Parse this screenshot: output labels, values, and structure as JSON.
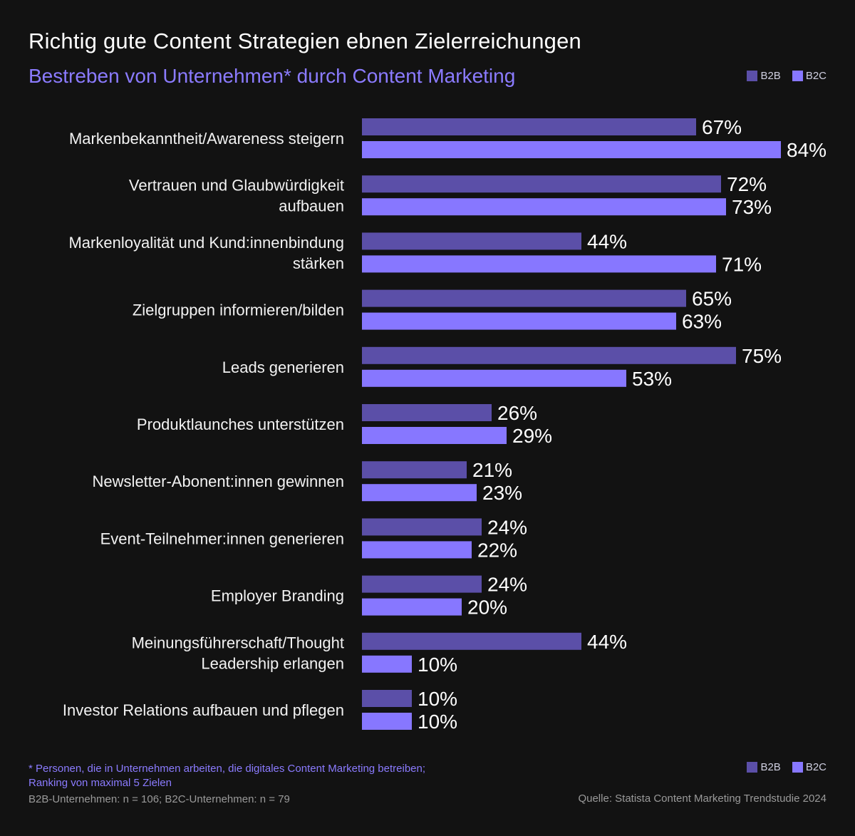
{
  "header": {
    "title": "Richtig gute Content Strategien ebnen Zielerreichungen",
    "subtitle": "Bestreben von Unternehmen* durch Content Marketing"
  },
  "legend": {
    "b2b_label": "B2B",
    "b2c_label": "B2C"
  },
  "footer": {
    "note_line1": "* Personen, die in Unternehmen arbeiten, die digitales Content Marketing betreiben;",
    "note_line2": "Ranking von maximal 5 Zielen",
    "sample": "B2B-Unternehmen: n = 106; B2C-Unternehmen: n = 79",
    "source": "Quelle: Statista Content Marketing Trendstudie 2024"
  },
  "colors": {
    "background": "#121212",
    "b2b": "#5b4fa8",
    "b2c": "#8777ff",
    "accent": "#8b7bff"
  },
  "chart_data": {
    "type": "bar",
    "orientation": "horizontal",
    "categories": [
      [
        "Markenbekanntheit/Awareness steigern"
      ],
      [
        "Vertrauen und Glaubwürdigkeit",
        "aufbauen"
      ],
      [
        "Markenloyalität und Kund:innenbindung",
        "stärken"
      ],
      [
        "Zielgruppen informieren/bilden"
      ],
      [
        "Leads generieren"
      ],
      [
        "Produktlaunches unterstützen"
      ],
      [
        "Newsletter-Abonent:innen gewinnen"
      ],
      [
        "Event-Teilnehmer:innen generieren"
      ],
      [
        "Employer Branding"
      ],
      [
        "Meinungsführerschaft/Thought",
        "Leadership erlangen"
      ],
      [
        "Investor Relations aufbauen und pflegen"
      ]
    ],
    "series": [
      {
        "name": "B2B",
        "values": [
          67,
          72,
          44,
          65,
          75,
          26,
          21,
          24,
          24,
          44,
          10
        ]
      },
      {
        "name": "B2C",
        "values": [
          84,
          73,
          71,
          63,
          53,
          29,
          23,
          22,
          20,
          10,
          10
        ]
      }
    ],
    "value_suffix": "%",
    "xlim": [
      0,
      84
    ],
    "legend_position": "top-right and bottom-right",
    "grid": false
  }
}
